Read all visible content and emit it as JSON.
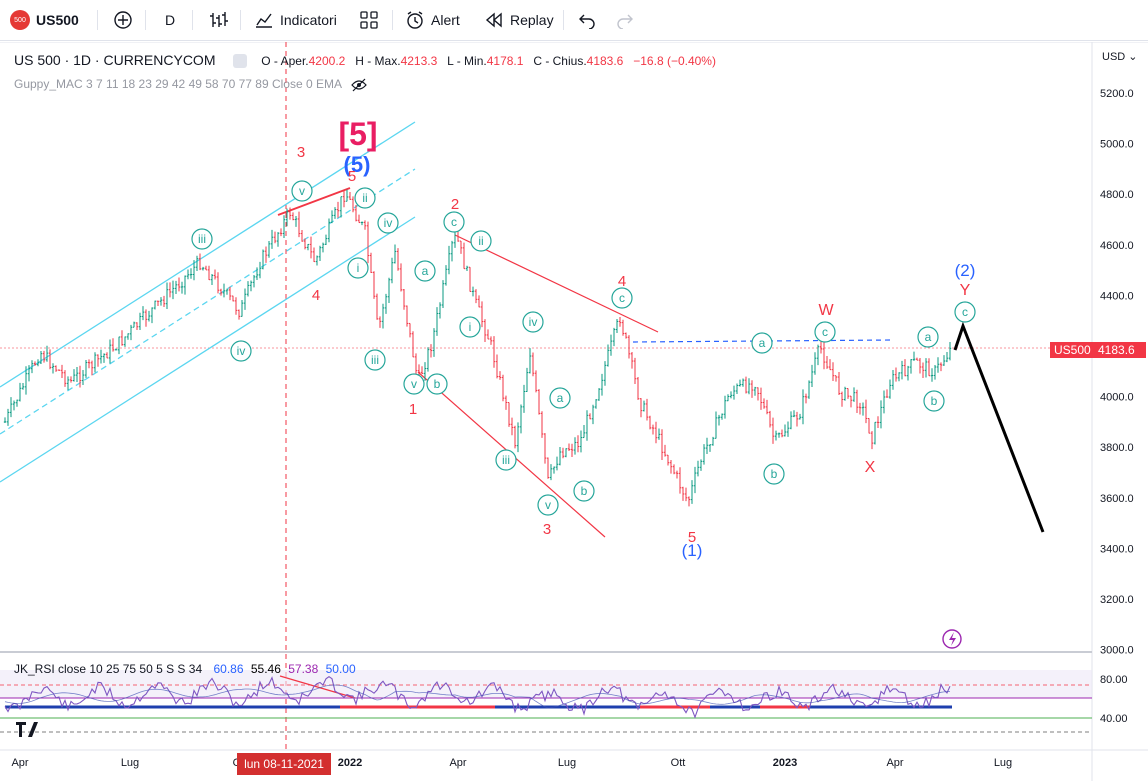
{
  "toolbar": {
    "symbol": "US500",
    "symbol_badge": "500",
    "interval": "D",
    "indicators_label": "Indicatori",
    "alert_label": "Alert",
    "replay_label": "Replay",
    "icons": [
      "add-icon",
      "bar-style-icon",
      "indicators-icon",
      "templates-icon",
      "alert-icon",
      "replay-icon",
      "undo-icon",
      "redo-icon"
    ]
  },
  "legend": {
    "title": "US 500 · 1D · CURRENCYCOM",
    "o_label": "O - Aper.",
    "o_value": "4200.2",
    "h_label": "H - Max.",
    "h_value": "4213.3",
    "l_label": "L - Min.",
    "l_value": "4178.1",
    "c_label": "C - Chius.",
    "c_value": "4183.6",
    "change": "−16.8 (−0.40%)",
    "indicator": "Guppy_MAC 3 7 11 18 23 29 42 49 58 70 77 89 Close 0 EMA"
  },
  "rsi_legend": {
    "name": "JK_RSI close 10 25 75 50 5 S S 34",
    "v1": "60.86",
    "v2": "55.46",
    "v3": "57.38",
    "v4": "50.00"
  },
  "price_axis": {
    "currency": "USD",
    "ticks": [
      "5200.0",
      "5000.0",
      "4800.0",
      "4600.0",
      "4400.0",
      "4200.0",
      "4000.0",
      "3800.0",
      "3600.0",
      "3400.0",
      "3200.0",
      "3000.0"
    ],
    "current_symbol": "US500",
    "current_price": "4183.6"
  },
  "rsi_axis": {
    "ticks": [
      "80.00",
      "40.00"
    ]
  },
  "time_axis": {
    "ticks": [
      "Apr",
      "Lug",
      "Ott",
      "2022",
      "Apr",
      "Lug",
      "Ott",
      "2023",
      "Apr",
      "Lug"
    ],
    "crosshair_date": "lun 08-11-2021"
  },
  "waves": {
    "big5": "[5]",
    "blue5": "(5)",
    "blue1": "(1)",
    "blue2": "(2)",
    "r3": "3",
    "r4a": "4",
    "r5a": "5",
    "r2": "2",
    "r1": "1",
    "r3b": "3",
    "r4b": "4",
    "r5b": "5",
    "W": "W",
    "X": "X",
    "Y": "Y",
    "iii": "iii",
    "iv": "iv",
    "v": "v",
    "ii": "ii",
    "iv2": "iv",
    "i": "i",
    "iii2": "iii",
    "v2": "v",
    "b1": "b",
    "a1": "a",
    "c1": "c",
    "ii2": "ii",
    "i2": "i",
    "iv3": "iv",
    "iii3": "iii",
    "a2": "a",
    "v3": "v",
    "b2": "b",
    "c2": "c",
    "a3": "a",
    "c3": "c",
    "b3": "b",
    "a4": "a",
    "b4": "b",
    "c4": "c"
  },
  "colors": {
    "up": "#089981",
    "down": "#f23645",
    "wave_red": "#f23645",
    "wave_blue": "#2962ff",
    "wave_pink": "#e91e63",
    "channel": "#5bd6f0",
    "wave_circle": "#26a69a"
  }
}
